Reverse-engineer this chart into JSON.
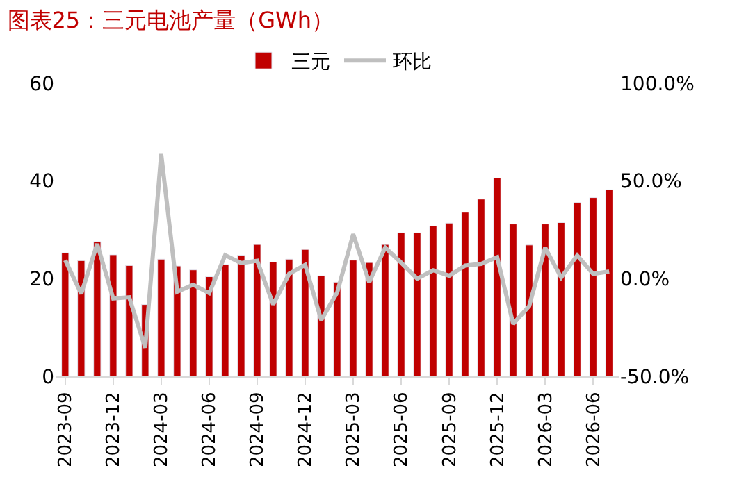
{
  "chart_data": {
    "type": "bar",
    "title": "图表25：三元电池产量（GWh）",
    "categories": [
      "2023-09",
      null,
      null,
      "2023-12",
      null,
      null,
      "2024-03",
      null,
      null,
      "2024-06",
      null,
      null,
      "2024-09",
      null,
      null,
      "2024-12",
      null,
      null,
      "2025-03",
      null,
      null,
      "2025-06",
      null,
      null,
      "2025-09",
      null,
      null,
      "2025-12",
      null,
      null,
      "2026-03",
      null,
      null,
      "2026-06",
      null
    ],
    "series": [
      {
        "name": "三元",
        "color": "#c00000",
        "values": [
          25.3,
          23.7,
          27.6,
          24.9,
          22.7,
          14.7,
          24.0,
          22.6,
          21.8,
          20.4,
          22.9,
          24.8,
          27.0,
          23.4,
          24.0,
          26.0,
          20.6,
          19.3,
          23.8,
          23.3,
          27.0,
          29.4,
          29.4,
          30.8,
          31.4,
          33.6,
          36.3,
          40.6,
          31.2,
          26.9,
          31.2,
          31.5,
          35.6,
          36.6,
          38.2
        ]
      },
      {
        "name": "环比",
        "type": "line",
        "axis": "y2",
        "color": "#bfbfbf",
        "values": [
          9.5,
          -7.7,
          17.8,
          -10.1,
          -9.5,
          -35.3,
          63.8,
          -6.7,
          -3.1,
          -7.4,
          12.0,
          8.0,
          9.2,
          -13.2,
          2.5,
          7.1,
          -21.2,
          -7.1,
          22.8,
          -1.8,
          15.9,
          8.2,
          0,
          4.3,
          1.5,
          6.7,
          7.6,
          11.0,
          -23.2,
          -14.0,
          15.9,
          0.6,
          11.9,
          2.4,
          3.7
        ]
      }
    ],
    "ylim": [
      0,
      60
    ],
    "yticks": [
      0,
      20,
      40,
      60
    ],
    "y2lim": [
      -50,
      100
    ],
    "y2ticks": [
      {
        "value": -50,
        "label": "-50.0%"
      },
      {
        "value": 0,
        "label": "0.0%"
      },
      {
        "value": 50,
        "label": "50.0%"
      },
      {
        "value": 100,
        "label": "100.0%"
      }
    ],
    "legend": "top",
    "marker": "none",
    "line_style": "solid"
  }
}
